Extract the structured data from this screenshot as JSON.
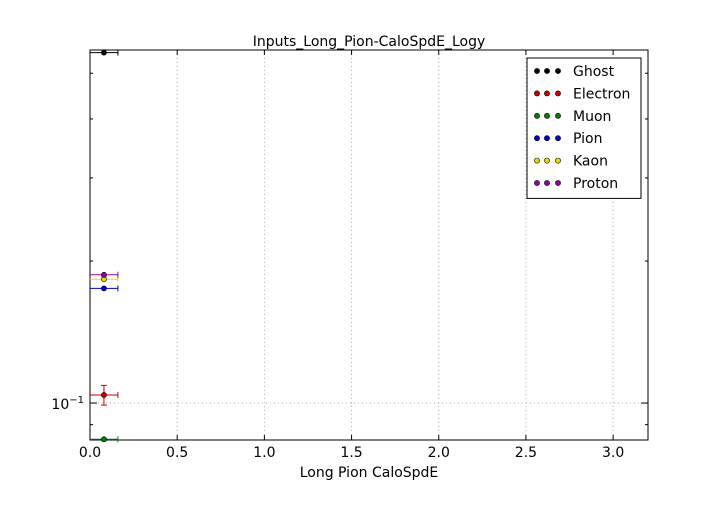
{
  "chart_data": {
    "type": "scatter",
    "title": "Inputs_Long_Pion-CaloSpdE_Logy",
    "xlabel": "Long Pion CaloSpdE",
    "ylabel": "",
    "xlim": [
      0.0,
      3.2
    ],
    "ylim": [
      0.0835,
      0.56
    ],
    "yscale": "log",
    "grid": true,
    "legend_position": "top-right",
    "x_ticks": [
      0.0,
      0.5,
      1.0,
      1.5,
      2.0,
      2.5,
      3.0
    ],
    "x_tick_labels": [
      "0.0",
      "0.5",
      "1.0",
      "1.5",
      "2.0",
      "2.5",
      "3.0"
    ],
    "y_major_ticks": [
      0.1
    ],
    "y_tick_label": {
      "base": "10",
      "exp": "−1"
    },
    "y_minor_ticks": [
      0.09,
      0.2,
      0.3,
      0.4,
      0.5
    ],
    "series": [
      {
        "name": "Ghost",
        "color": "#000000",
        "x": 0.08,
        "xerr": 0.08,
        "y": 0.553,
        "yerr": 0.0
      },
      {
        "name": "Electron",
        "color": "#cc0000",
        "x": 0.08,
        "xerr": 0.08,
        "y": 0.104,
        "yerr": 0.005
      },
      {
        "name": "Muon",
        "color": "#008000",
        "x": 0.08,
        "xerr": 0.08,
        "y": 0.0838,
        "yerr": 0.0
      },
      {
        "name": "Pion",
        "color": "#0000cc",
        "x": 0.08,
        "xerr": 0.08,
        "y": 0.175,
        "yerr": 0.0
      },
      {
        "name": "Kaon",
        "color": "#e6d800",
        "x": 0.08,
        "xerr": 0.08,
        "y": 0.183,
        "yerr": 0.0
      },
      {
        "name": "Proton",
        "color": "#990099",
        "x": 0.08,
        "xerr": 0.08,
        "y": 0.187,
        "yerr": 0.0
      }
    ]
  }
}
